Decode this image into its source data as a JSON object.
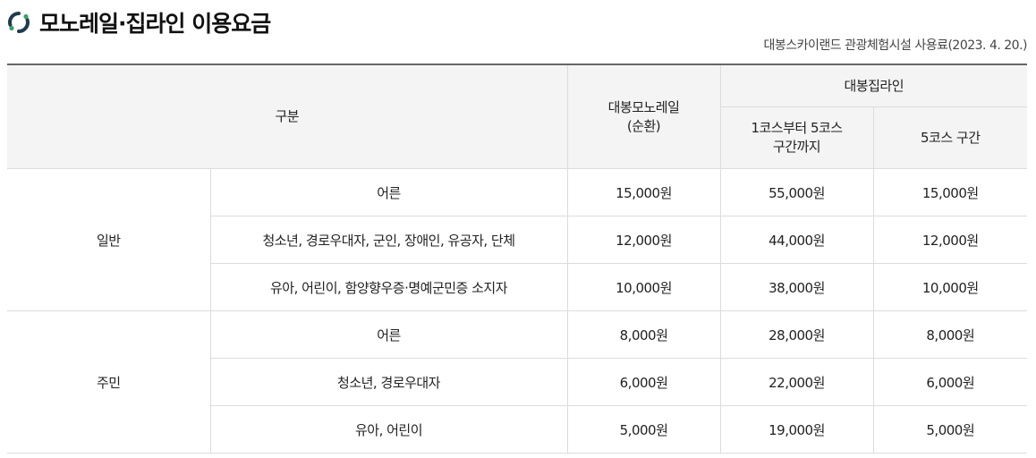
{
  "page": {
    "title": "모노레일·집라인 이용요금",
    "subtitle": "대봉스카이랜드 관광체험시설 사용료(2023. 4. 20.)",
    "title_icon": "refresh-circle-icon",
    "colors": {
      "icon_dark": "#1f3b4d",
      "icon_green": "#3aa06b",
      "header_bg": "#f4f4f4",
      "border": "#dcdcdc",
      "top_rule": "#666666"
    }
  },
  "table": {
    "headers": {
      "category": "구분",
      "monorail_line1": "대봉모노레일",
      "monorail_line2": "(순환)",
      "zipline": "대봉집라인",
      "zipline_course_line1": "1코스부터 5코스",
      "zipline_course_line2": "구간까지",
      "zipline_course5": "5코스 구간"
    },
    "groups": [
      {
        "name": "일반",
        "rows": [
          {
            "label": "어른",
            "monorail": "15,000원",
            "zip_full": "55,000원",
            "zip_5": "15,000원"
          },
          {
            "label": "청소년, 경로우대자, 군인, 장애인, 유공자, 단체",
            "monorail": "12,000원",
            "zip_full": "44,000원",
            "zip_5": "12,000원"
          },
          {
            "label": "유아, 어린이, 함양향우증·명예군민증 소지자",
            "monorail": "10,000원",
            "zip_full": "38,000원",
            "zip_5": "10,000원"
          }
        ]
      },
      {
        "name": "주민",
        "rows": [
          {
            "label": "어른",
            "monorail": "8,000원",
            "zip_full": "28,000원",
            "zip_5": "8,000원"
          },
          {
            "label": "청소년, 경로우대자",
            "monorail": "6,000원",
            "zip_full": "22,000원",
            "zip_5": "6,000원"
          },
          {
            "label": "유아, 어린이",
            "monorail": "5,000원",
            "zip_full": "19,000원",
            "zip_5": "5,000원"
          }
        ]
      }
    ]
  }
}
